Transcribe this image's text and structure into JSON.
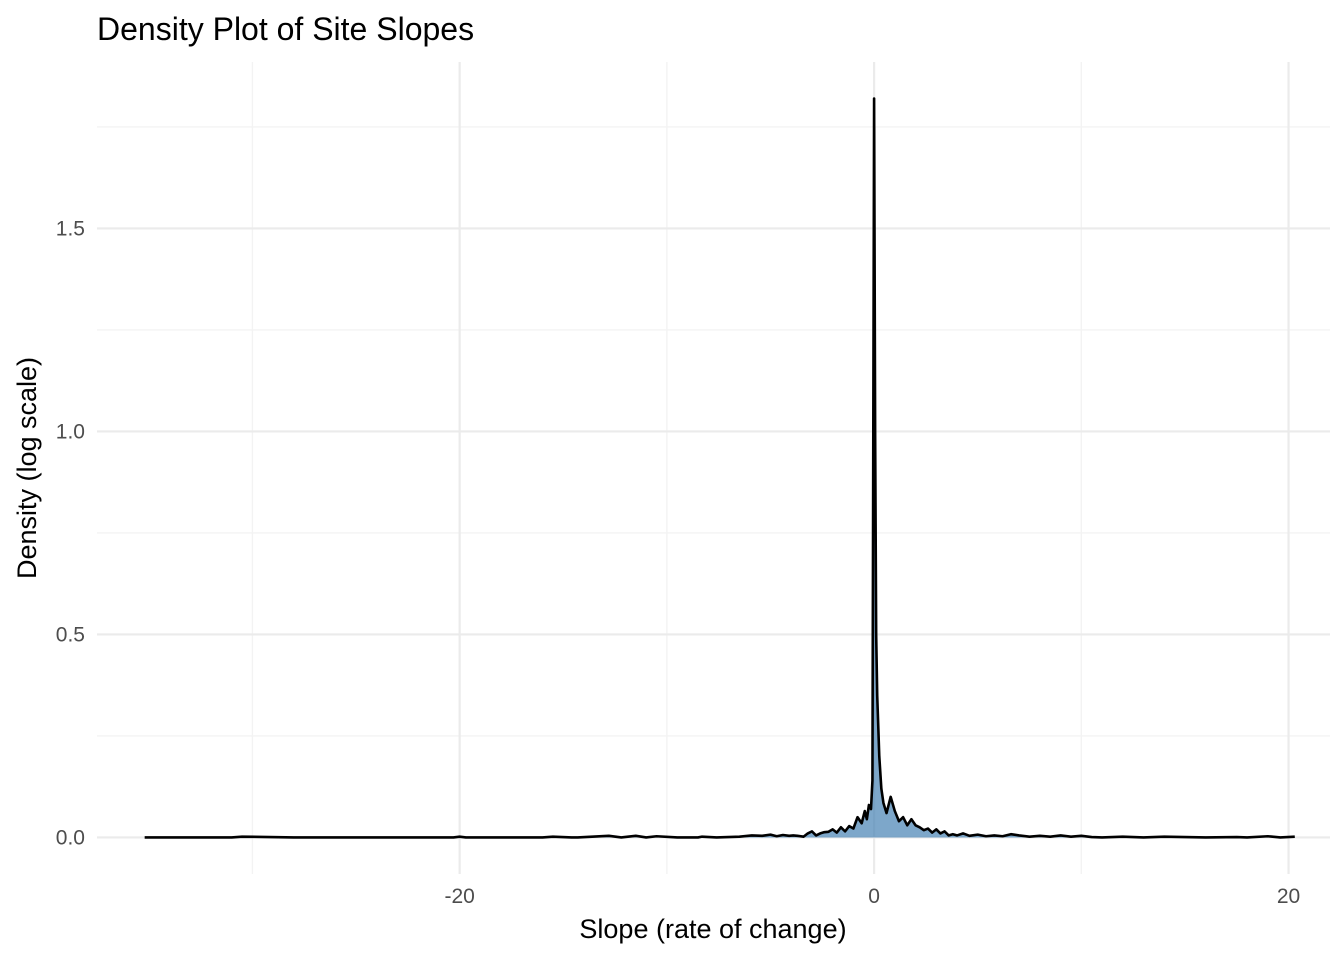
{
  "chart_data": {
    "type": "area",
    "title": "Density Plot of Site Slopes",
    "xlabel": "Slope (rate of change)",
    "ylabel": "Density (log scale)",
    "xlim": [
      -37.5,
      22
    ],
    "ylim": [
      -0.09,
      1.91
    ],
    "x_ticks": [
      -20,
      0,
      20
    ],
    "x_tick_labels": [
      "-20",
      "0",
      "20"
    ],
    "x_minor_ticks": [
      -30,
      -10,
      10
    ],
    "y_ticks": [
      0.0,
      0.5,
      1.0,
      1.5
    ],
    "y_tick_labels": [
      "0.0",
      "0.5",
      "1.0",
      "1.5"
    ],
    "y_minor_ticks": [
      0.25,
      0.75,
      1.25,
      1.75
    ],
    "grid": true,
    "fill_color": "#4682b4",
    "fill_opacity": 0.7,
    "line_color": "#000000",
    "series": [
      {
        "x": [
          -35.2,
          -32,
          -31,
          -30.5,
          -28,
          -20.3,
          -20,
          -19.7,
          -16,
          -15.5,
          -14.6,
          -14.3,
          -12.8,
          -12.2,
          -11.5,
          -11,
          -10.5,
          -9.5,
          -8.5,
          -8.3,
          -7.6,
          -6.5,
          -5.9,
          -5.4,
          -5.0,
          -4.7,
          -4.4,
          -4.1,
          -3.9,
          -3.7,
          -3.4,
          -3.2,
          -3.0,
          -2.8,
          -2.6,
          -2.4,
          -2.2,
          -2.0,
          -1.8,
          -1.6,
          -1.4,
          -1.2,
          -1.0,
          -0.8,
          -0.6,
          -0.45,
          -0.35,
          -0.25,
          -0.15,
          -0.08,
          0.0,
          0.05,
          0.1,
          0.15,
          0.25,
          0.35,
          0.45,
          0.6,
          0.8,
          1.0,
          1.2,
          1.4,
          1.6,
          1.8,
          2.0,
          2.2,
          2.4,
          2.6,
          2.8,
          3.0,
          3.2,
          3.4,
          3.6,
          3.8,
          4.0,
          4.3,
          4.6,
          5.0,
          5.4,
          5.8,
          6.2,
          6.6,
          7.0,
          7.5,
          8.0,
          8.5,
          9.0,
          9.5,
          10.0,
          10.5,
          11.0,
          12.0,
          13.0,
          14.0,
          15.0,
          16.0,
          17.5,
          18.0,
          19.0,
          19.6,
          20.3
        ],
        "y": [
          0.0,
          0.0,
          0.0,
          0.002,
          0.0,
          0.0,
          0.002,
          0.0,
          0.0,
          0.002,
          0.0,
          0.0,
          0.004,
          0.0,
          0.004,
          0.0,
          0.003,
          0.0,
          0.0,
          0.002,
          0.0,
          0.002,
          0.005,
          0.004,
          0.007,
          0.003,
          0.006,
          0.004,
          0.005,
          0.004,
          0.002,
          0.01,
          0.015,
          0.005,
          0.01,
          0.013,
          0.014,
          0.02,
          0.012,
          0.025,
          0.015,
          0.028,
          0.022,
          0.05,
          0.035,
          0.065,
          0.045,
          0.08,
          0.07,
          0.14,
          1.82,
          1.0,
          0.5,
          0.35,
          0.2,
          0.12,
          0.085,
          0.06,
          0.1,
          0.065,
          0.04,
          0.05,
          0.03,
          0.045,
          0.03,
          0.025,
          0.018,
          0.022,
          0.012,
          0.02,
          0.01,
          0.015,
          0.005,
          0.008,
          0.005,
          0.01,
          0.004,
          0.007,
          0.003,
          0.005,
          0.003,
          0.008,
          0.005,
          0.002,
          0.004,
          0.002,
          0.005,
          0.002,
          0.004,
          0.001,
          0.0,
          0.002,
          0.0,
          0.002,
          0.001,
          0.0,
          0.001,
          0.0,
          0.003,
          0.0,
          0.002
        ]
      }
    ]
  }
}
